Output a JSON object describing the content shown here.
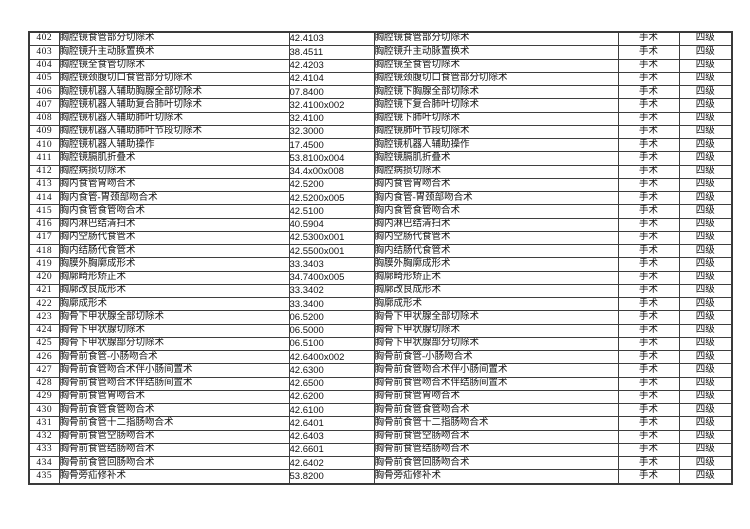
{
  "table": {
    "column_names": [
      "row-number",
      "procedure-name",
      "procedure-code",
      "procedure-name-repeat",
      "category",
      "level"
    ],
    "category_label": "手术",
    "level_label": "四级",
    "rows": [
      {
        "num": "402",
        "name": "胸腔镜食管部分切除术",
        "code": "42.4103",
        "name2": "胸腔镜食管部分切除术",
        "category": "手术",
        "level": "四级"
      },
      {
        "num": "403",
        "name": "胸腔镜升主动脉置换术",
        "code": "38.4511",
        "name2": "胸腔镜升主动脉置换术",
        "category": "手术",
        "level": "四级"
      },
      {
        "num": "404",
        "name": "胸腔镜全食管切除术",
        "code": "42.4203",
        "name2": "胸腔镜全食管切除术",
        "category": "手术",
        "level": "四级"
      },
      {
        "num": "405",
        "name": "胸腔镜颈腹切口食管部分切除术",
        "code": "42.4104",
        "name2": "胸腔镜颈腹切口食管部分切除术",
        "category": "手术",
        "level": "四级"
      },
      {
        "num": "406",
        "name": "胸腔镜机器人辅助胸腺全部切除术",
        "code": "07.8400",
        "name2": "胸腔镜下胸腺全部切除术",
        "category": "手术",
        "level": "四级"
      },
      {
        "num": "407",
        "name": "胸腔镜机器人辅助复合肺叶切除术",
        "code": "32.4100x002",
        "name2": "胸腔镜下复合肺叶切除术",
        "category": "手术",
        "level": "四级"
      },
      {
        "num": "408",
        "name": "胸腔镜机器人辅助肺叶切除术",
        "code": "32.4100",
        "name2": "胸腔镜下肺叶切除术",
        "category": "手术",
        "level": "四级"
      },
      {
        "num": "409",
        "name": "胸腔镜机器人辅助肺叶节段切除术",
        "code": "32.3000",
        "name2": "胸腔镜肺叶节段切除术",
        "category": "手术",
        "level": "四级"
      },
      {
        "num": "410",
        "name": "胸腔镜机器人辅助操作",
        "code": "17.4500",
        "name2": "胸腔镜机器人辅助操作",
        "category": "手术",
        "level": "四级"
      },
      {
        "num": "411",
        "name": "胸腔镜膈肌折叠术",
        "code": "53.8100x004",
        "name2": "胸腔镜膈肌折叠术",
        "category": "手术",
        "level": "四级"
      },
      {
        "num": "412",
        "name": "胸腔病损切除术",
        "code": "34.4x00x008",
        "name2": "胸腔病损切除术",
        "category": "手术",
        "level": "四级"
      },
      {
        "num": "413",
        "name": "胸内食管胃吻合术",
        "code": "42.5200",
        "name2": "胸内食管胃吻合术",
        "category": "手术",
        "level": "四级"
      },
      {
        "num": "414",
        "name": "胸内食管-胃颈部吻合术",
        "code": "42.5200x005",
        "name2": "胸内食管-胃颈部吻合术",
        "category": "手术",
        "level": "四级"
      },
      {
        "num": "415",
        "name": "胸内食管食管吻合术",
        "code": "42.5100",
        "name2": "胸内食管食管吻合术",
        "category": "手术",
        "level": "四级"
      },
      {
        "num": "416",
        "name": "胸内淋巴结清扫术",
        "code": "40.5904",
        "name2": "胸内淋巴结清扫术",
        "category": "手术",
        "level": "四级"
      },
      {
        "num": "417",
        "name": "胸内空肠代食管术",
        "code": "42.5300x001",
        "name2": "胸内空肠代食管术",
        "category": "手术",
        "level": "四级"
      },
      {
        "num": "418",
        "name": "胸内结肠代食管术",
        "code": "42.5500x001",
        "name2": "胸内结肠代食管术",
        "category": "手术",
        "level": "四级"
      },
      {
        "num": "419",
        "name": "胸膜外胸廓成形术",
        "code": "33.3403",
        "name2": "胸膜外胸廓成形术",
        "category": "手术",
        "level": "四级"
      },
      {
        "num": "420",
        "name": "胸廓畸形矫正术",
        "code": "34.7400x005",
        "name2": "胸廓畸形矫正术",
        "category": "手术",
        "level": "四级"
      },
      {
        "num": "421",
        "name": "胸廓改良成形术",
        "code": "33.3402",
        "name2": "胸廓改良成形术",
        "category": "手术",
        "level": "四级"
      },
      {
        "num": "422",
        "name": "胸廓成形术",
        "code": "33.3400",
        "name2": "胸廓成形术",
        "category": "手术",
        "level": "四级"
      },
      {
        "num": "423",
        "name": "胸骨下甲状腺全部切除术",
        "code": "06.5200",
        "name2": "胸骨下甲状腺全部切除术",
        "category": "手术",
        "level": "四级"
      },
      {
        "num": "424",
        "name": "胸骨下甲状腺切除术",
        "code": "06.5000",
        "name2": "胸骨下甲状腺切除术",
        "category": "手术",
        "level": "四级"
      },
      {
        "num": "425",
        "name": "胸骨下甲状腺部分切除术",
        "code": "06.5100",
        "name2": "胸骨下甲状腺部分切除术",
        "category": "手术",
        "level": "四级"
      },
      {
        "num": "426",
        "name": "胸骨前食管-小肠吻合术",
        "code": "42.6400x002",
        "name2": "胸骨前食管-小肠吻合术",
        "category": "手术",
        "level": "四级"
      },
      {
        "num": "427",
        "name": "胸骨前食管吻合术伴小肠间置术",
        "code": "42.6300",
        "name2": "胸骨前食管吻合术伴小肠间置术",
        "category": "手术",
        "level": "四级"
      },
      {
        "num": "428",
        "name": "胸骨前食管吻合术伴结肠间置术",
        "code": "42.6500",
        "name2": "胸骨前食管吻合术伴结肠间置术",
        "category": "手术",
        "level": "四级"
      },
      {
        "num": "429",
        "name": "胸骨前食管胃吻合术",
        "code": "42.6200",
        "name2": "胸骨前食管胃吻合术",
        "category": "手术",
        "level": "四级"
      },
      {
        "num": "430",
        "name": "胸骨前食管食管吻合术",
        "code": "42.6100",
        "name2": "胸骨前食管食管吻合术",
        "category": "手术",
        "level": "四级"
      },
      {
        "num": "431",
        "name": "胸骨前食管十二指肠吻合术",
        "code": "42.6401",
        "name2": "胸骨前食管十二指肠吻合术",
        "category": "手术",
        "level": "四级"
      },
      {
        "num": "432",
        "name": "胸骨前食管空肠吻合术",
        "code": "42.6403",
        "name2": "胸骨前食管空肠吻合术",
        "category": "手术",
        "level": "四级"
      },
      {
        "num": "433",
        "name": "胸骨前食管结肠吻合术",
        "code": "42.6601",
        "name2": "胸骨前食管结肠吻合术",
        "category": "手术",
        "level": "四级"
      },
      {
        "num": "434",
        "name": "胸骨前食管回肠吻合术",
        "code": "42.6402",
        "name2": "胸骨前食管回肠吻合术",
        "category": "手术",
        "level": "四级"
      },
      {
        "num": "435",
        "name": "胸骨旁疝修补术",
        "code": "53.8200",
        "name2": "胸骨旁疝修补术",
        "category": "手术",
        "level": "四级"
      }
    ]
  }
}
